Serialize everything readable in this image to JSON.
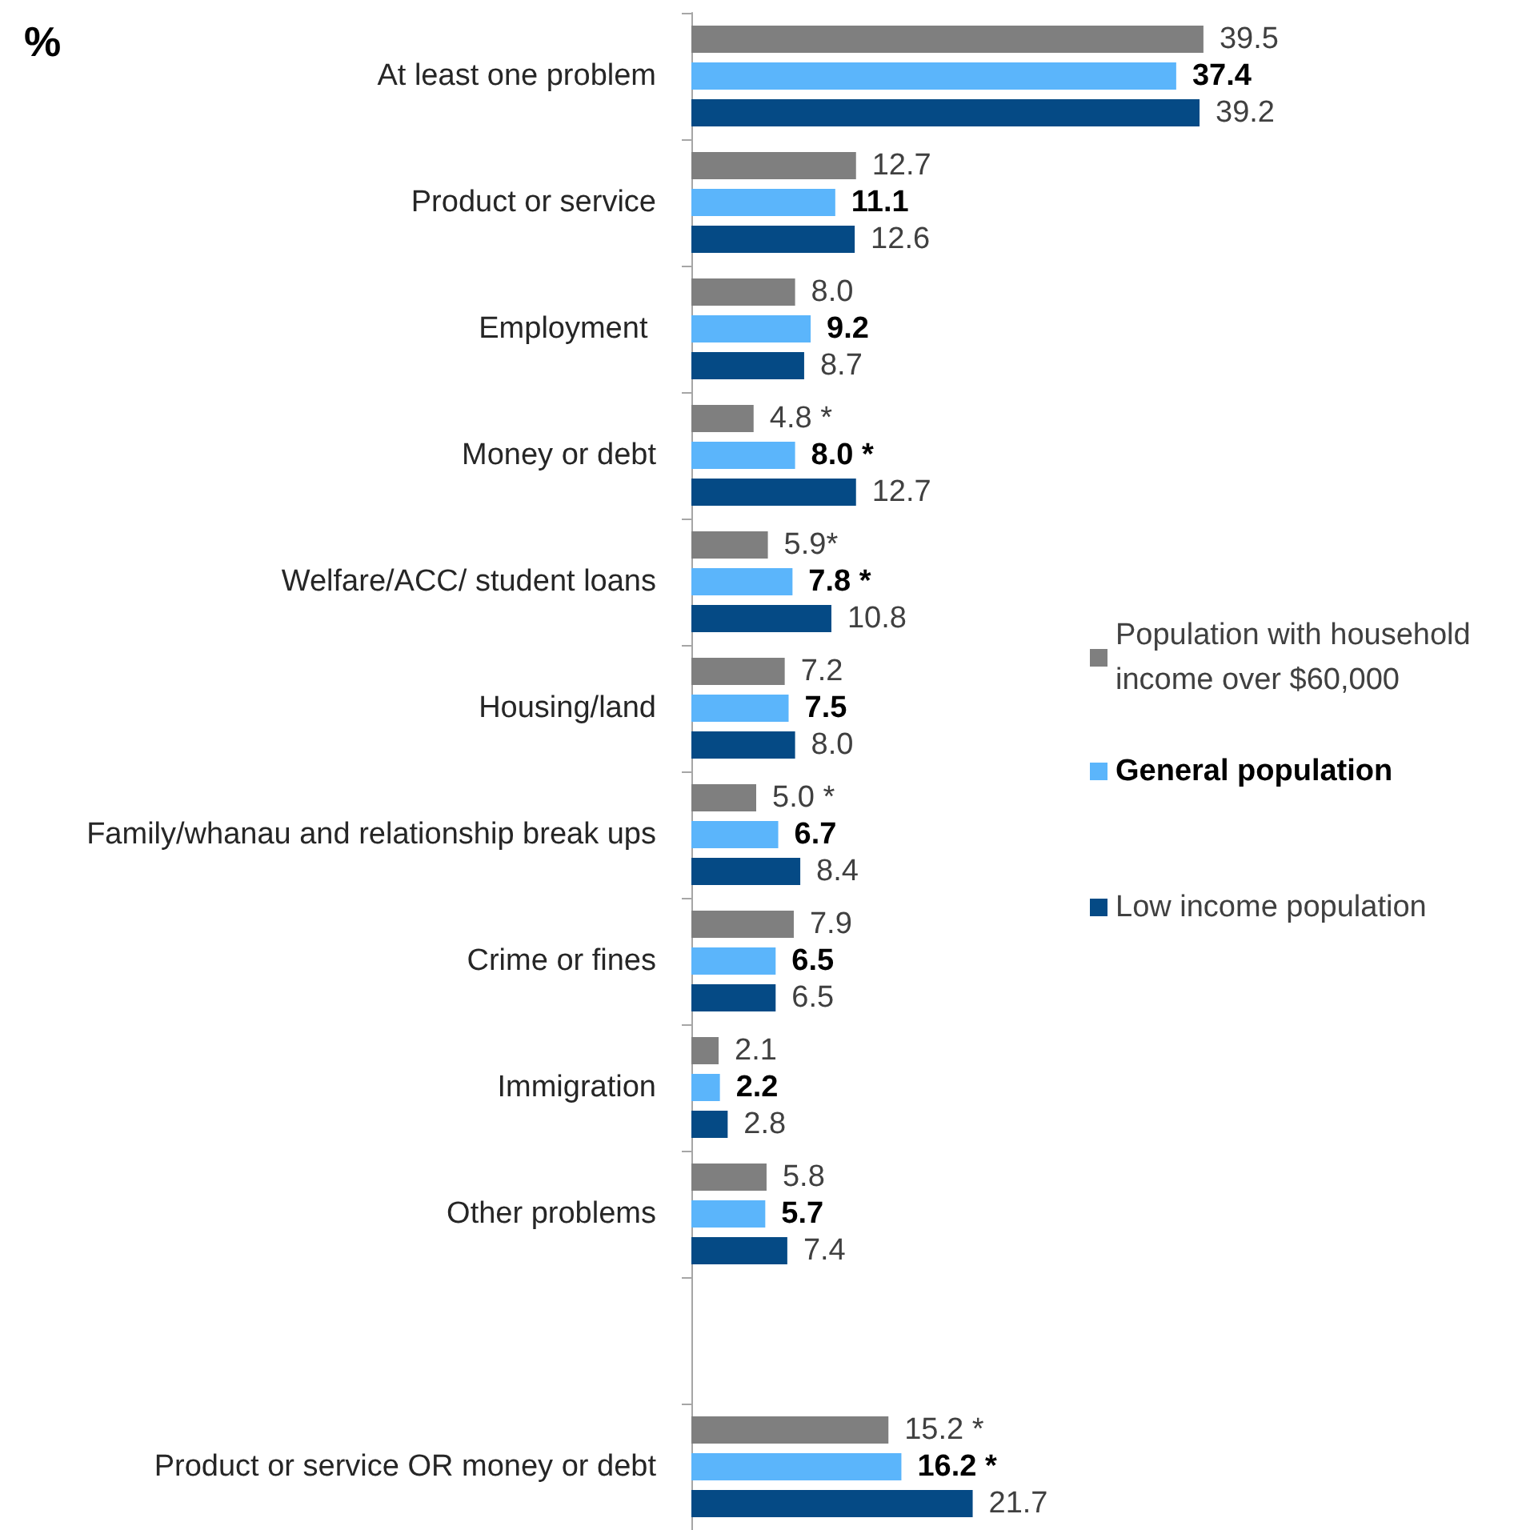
{
  "chart_data": {
    "type": "bar",
    "orientation": "horizontal",
    "title": "%",
    "categories": [
      "At least one problem",
      "Product or service",
      "Employment ",
      "Money or debt",
      "Welfare/ACC/ student loans",
      "Housing/land",
      "Family/whanau and relationship break ups",
      "Crime or fines",
      "Immigration",
      "Other problems",
      null,
      "Product or service OR money or debt"
    ],
    "series": [
      {
        "name": "Population with household income over $60,000",
        "color": "#7f7f7f",
        "values": [
          39.5,
          12.7,
          8.0,
          4.8,
          5.9,
          7.2,
          5.0,
          7.9,
          2.1,
          5.8,
          null,
          15.2
        ],
        "value_labels": [
          "39.5",
          "12.7",
          "8.0",
          "4.8 *",
          "5.9*",
          "7.2",
          "5.0 *",
          "7.9",
          "2.1",
          "5.8",
          null,
          "15.2 *"
        ]
      },
      {
        "name": "General population",
        "color": "#5bb5fb",
        "values": [
          37.4,
          11.1,
          9.2,
          8.0,
          7.8,
          7.5,
          6.7,
          6.5,
          2.2,
          5.7,
          null,
          16.2
        ],
        "value_labels": [
          "37.4",
          "11.1",
          "9.2",
          "8.0 *",
          "7.8 *",
          "7.5",
          "6.7",
          "6.5",
          "2.2",
          "5.7",
          null,
          "16.2 *"
        ]
      },
      {
        "name": "Low income population",
        "color": "#054a85",
        "values": [
          39.2,
          12.6,
          8.7,
          12.7,
          10.8,
          8.0,
          8.4,
          6.5,
          2.8,
          7.4,
          null,
          21.7
        ],
        "value_labels": [
          "39.2",
          "12.6",
          "8.7",
          "12.7",
          "10.8",
          "8.0",
          "8.4",
          "6.5",
          "2.8",
          "7.4",
          null,
          "21.7"
        ]
      }
    ],
    "legend": "right"
  }
}
